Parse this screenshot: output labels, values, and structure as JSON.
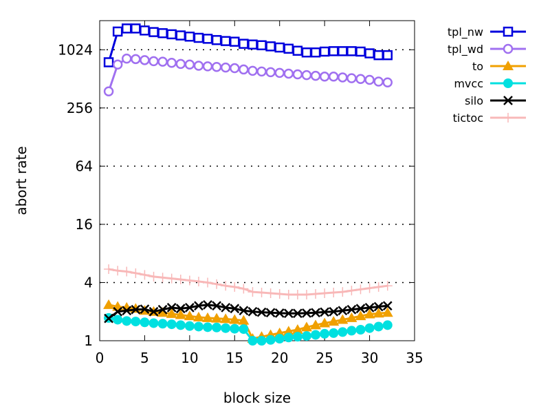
{
  "chart_data": {
    "type": "line",
    "xlabel": "block size",
    "ylabel": "abort rate",
    "xlim": [
      0,
      35
    ],
    "ylim": [
      1,
      2048
    ],
    "yscale": "log2",
    "grid": "horizontal dotted",
    "legend_placement": "outside-right",
    "x_ticks": [
      0,
      5,
      10,
      15,
      20,
      25,
      30,
      35
    ],
    "y_ticks": [
      1,
      4,
      16,
      64,
      256,
      1024
    ],
    "x_tick_labels": [
      "0",
      "5",
      "10",
      "15",
      "20",
      "25",
      "30",
      "35"
    ],
    "y_tick_labels": [
      "1",
      "4",
      "16",
      "64",
      "256",
      "1024"
    ],
    "x": [
      1,
      2,
      3,
      4,
      5,
      6,
      7,
      8,
      9,
      10,
      11,
      12,
      13,
      14,
      15,
      16,
      17,
      18,
      19,
      20,
      21,
      22,
      23,
      24,
      25,
      26,
      27,
      28,
      29,
      30,
      31,
      32
    ],
    "series": [
      {
        "name": "tpl_nw",
        "color": "#0000dd",
        "marker": "open-square",
        "values": [
          760,
          1580,
          1700,
          1700,
          1620,
          1560,
          1520,
          1480,
          1440,
          1400,
          1360,
          1330,
          1290,
          1260,
          1240,
          1180,
          1160,
          1140,
          1110,
          1080,
          1050,
          1000,
          960,
          960,
          980,
          990,
          990,
          990,
          980,
          940,
          900,
          900
        ]
      },
      {
        "name": "tpl_wd",
        "color": "#a070f0",
        "marker": "open-circle",
        "values": [
          380,
          720,
          830,
          820,
          800,
          780,
          770,
          750,
          730,
          720,
          700,
          690,
          680,
          670,
          660,
          640,
          620,
          610,
          600,
          590,
          580,
          570,
          560,
          550,
          540,
          540,
          530,
          520,
          510,
          500,
          480,
          470
        ]
      },
      {
        "name": "to",
        "color": "#f0a000",
        "marker": "filled-triangle",
        "values": [
          2.35,
          2.25,
          2.2,
          2.15,
          2.05,
          2.0,
          1.95,
          1.9,
          1.85,
          1.8,
          1.75,
          1.72,
          1.7,
          1.68,
          1.65,
          1.62,
          1.05,
          1.1,
          1.15,
          1.2,
          1.25,
          1.3,
          1.38,
          1.45,
          1.52,
          1.58,
          1.65,
          1.72,
          1.8,
          1.88,
          1.92,
          1.95
        ]
      },
      {
        "name": "mvcc",
        "color": "#00e0e0",
        "marker": "filled-circle",
        "values": [
          1.72,
          1.65,
          1.6,
          1.58,
          1.55,
          1.52,
          1.5,
          1.48,
          1.45,
          1.42,
          1.4,
          1.38,
          1.37,
          1.35,
          1.33,
          1.32,
          1.0,
          1.0,
          1.02,
          1.05,
          1.08,
          1.1,
          1.12,
          1.15,
          1.18,
          1.2,
          1.23,
          1.27,
          1.3,
          1.35,
          1.4,
          1.45
        ]
      },
      {
        "name": "silo",
        "color": "#000000",
        "marker": "x",
        "values": [
          1.7,
          2.0,
          2.05,
          2.1,
          2.12,
          2.0,
          2.1,
          2.2,
          2.15,
          2.2,
          2.3,
          2.35,
          2.3,
          2.2,
          2.15,
          2.05,
          2.0,
          1.97,
          1.95,
          1.93,
          1.92,
          1.92,
          1.93,
          1.95,
          1.98,
          2.0,
          2.05,
          2.1,
          2.15,
          2.2,
          2.25,
          2.3
        ]
      },
      {
        "name": "tictoc",
        "color": "#f8b8b8",
        "marker": "plus",
        "values": [
          5.5,
          5.3,
          5.2,
          5.0,
          4.8,
          4.6,
          4.5,
          4.4,
          4.3,
          4.2,
          4.1,
          4.0,
          3.85,
          3.7,
          3.6,
          3.45,
          3.2,
          3.15,
          3.1,
          3.05,
          3.0,
          3.0,
          3.0,
          3.05,
          3.1,
          3.15,
          3.2,
          3.3,
          3.4,
          3.5,
          3.6,
          3.7
        ]
      }
    ]
  }
}
